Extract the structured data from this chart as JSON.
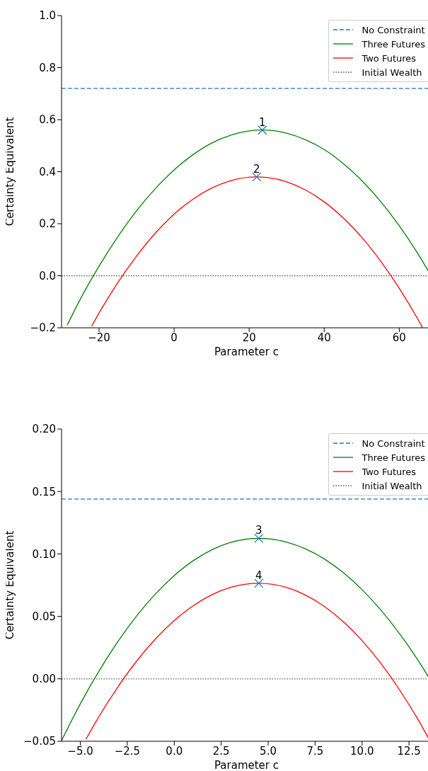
{
  "chart_data": [
    {
      "type": "line",
      "xlabel": "Parameter c",
      "ylabel": "Certainty Equivalent",
      "legend": "top right",
      "xlim": [
        -30,
        68.6
      ],
      "ylim": [
        -0.2,
        1.0
      ],
      "xticks": [
        {
          "value": -20,
          "label": "−20"
        },
        0,
        20,
        40,
        60
      ],
      "yticks": [
        {
          "value": -0.2,
          "label": "−0.2"
        },
        {
          "value": 0,
          "label": "0.0"
        },
        0.2,
        0.4,
        0.6,
        0.8,
        {
          "value": 1,
          "label": "1.0"
        }
      ],
      "series": [
        {
          "name": "No Constraint",
          "type": "line",
          "line_style": "dashed",
          "color": "#1f77b4",
          "x": [
            -30,
            68.6
          ],
          "values": [
            0.72,
            0.72
          ]
        },
        {
          "name": "Three Futures",
          "type": "line",
          "line_style": "solid",
          "color": "#008000",
          "x": [
            -28.5,
            -25,
            -20,
            -15,
            -10,
            -5,
            0,
            5,
            10,
            15,
            20,
            23.5,
            30,
            35,
            40,
            45,
            50,
            55,
            60,
            65,
            68.6
          ],
          "values": [
            -0.19,
            -0.09,
            0.037,
            0.15,
            0.25,
            0.335,
            0.407,
            0.465,
            0.51,
            0.54,
            0.557,
            0.56,
            0.548,
            0.523,
            0.485,
            0.432,
            0.366,
            0.286,
            0.192,
            0.084,
            -0.003
          ]
        },
        {
          "name": "Two Futures",
          "type": "line",
          "line_style": "solid",
          "color": "#ff0000",
          "x": [
            -22,
            -20,
            -15,
            -10,
            -5,
            0,
            5,
            10,
            15,
            22,
            25,
            30,
            35,
            40,
            45,
            50,
            55,
            60,
            65,
            66.2
          ],
          "values": [
            -0.194,
            -0.143,
            -0.026,
            0.076,
            0.164,
            0.237,
            0.294,
            0.337,
            0.365,
            0.38,
            0.377,
            0.361,
            0.33,
            0.284,
            0.223,
            0.148,
            0.057,
            -0.048,
            -0.168,
            -0.199
          ]
        },
        {
          "name": "Initial Wealth",
          "type": "line",
          "line_style": "dotted",
          "color": "#555555",
          "x": [
            -30,
            68.6
          ],
          "values": [
            0,
            0
          ]
        },
        {
          "type": "scatter",
          "marker": "cross",
          "color": "#1f77b4",
          "x": [
            23.5,
            22
          ],
          "values": [
            0.56,
            0.38
          ]
        }
      ],
      "annotations": [
        {
          "text": "1",
          "x": 23.5,
          "y": 0.56
        },
        {
          "text": "2",
          "x": 22,
          "y": 0.38
        }
      ]
    },
    {
      "type": "line",
      "xlabel": "Parameter c",
      "ylabel": "Certainty Equivalent",
      "legend": "top right",
      "xlim": [
        -6,
        13.7
      ],
      "ylim": [
        -0.05,
        0.2
      ],
      "xticks": [
        {
          "value": -5,
          "label": "−5.0"
        },
        {
          "value": -2.5,
          "label": "−2.5"
        },
        {
          "value": 0,
          "label": "0.0"
        },
        2.5,
        {
          "value": 5,
          "label": "5.0"
        },
        7.5,
        {
          "value": 10,
          "label": "10.0"
        },
        12.5
      ],
      "yticks": [
        {
          "value": -0.05,
          "label": "−0.05"
        },
        {
          "value": 0,
          "label": "0.00"
        },
        0.05,
        {
          "value": 0.1,
          "label": "0.10"
        },
        0.15,
        {
          "value": 0.2,
          "label": "0.20"
        }
      ],
      "series": [
        {
          "name": "No Constraint",
          "type": "line",
          "line_style": "dashed",
          "color": "#1f77b4",
          "x": [
            -6,
            13.7
          ],
          "values": [
            0.144,
            0.144
          ]
        },
        {
          "name": "Three Futures",
          "type": "line",
          "line_style": "solid",
          "color": "#008000",
          "x": [
            -6,
            -5,
            -4,
            -3,
            -2,
            -1,
            0,
            1,
            2,
            3,
            4.5,
            6,
            7,
            8,
            9,
            10,
            11,
            12,
            13,
            13.7
          ],
          "values": [
            -0.0495,
            -0.02,
            0.0063,
            0.0298,
            0.0504,
            0.068,
            0.0827,
            0.0945,
            0.1033,
            0.1092,
            0.1125,
            0.1094,
            0.104,
            0.0959,
            0.085,
            0.0714,
            0.0551,
            0.0361,
            0.0144,
            -0.0025
          ]
        },
        {
          "name": "Two Futures",
          "type": "line",
          "line_style": "solid",
          "color": "#ff0000",
          "x": [
            -4.7,
            -4,
            -3,
            -2,
            -1,
            0,
            1,
            2,
            3,
            4.5,
            6,
            7,
            8,
            9,
            10,
            11,
            12,
            13,
            13.6
          ],
          "values": [
            -0.0484,
            -0.03,
            -0.0065,
            0.0142,
            0.0319,
            0.0466,
            0.0584,
            0.0673,
            0.0732,
            0.0765,
            0.0731,
            0.067,
            0.0579,
            0.0458,
            0.0306,
            0.0124,
            -0.0089,
            -0.0331,
            -0.0492
          ]
        },
        {
          "name": "Initial Wealth",
          "type": "line",
          "line_style": "dotted",
          "color": "#555555",
          "x": [
            -6,
            13.7
          ],
          "values": [
            0,
            0
          ]
        },
        {
          "type": "scatter",
          "marker": "cross",
          "color": "#1f77b4",
          "x": [
            4.5,
            4.5
          ],
          "values": [
            0.1125,
            0.0765
          ]
        }
      ],
      "annotations": [
        {
          "text": "3",
          "x": 4.5,
          "y": 0.1125
        },
        {
          "text": "4",
          "x": 4.5,
          "y": 0.0765
        }
      ]
    }
  ]
}
